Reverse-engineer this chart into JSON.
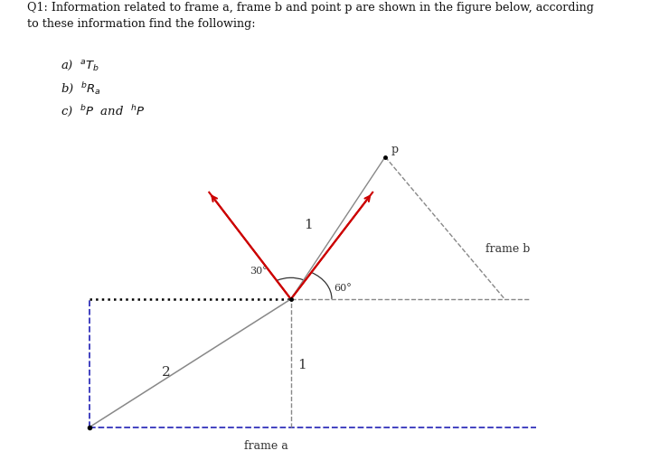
{
  "title_text": "Q1: Information related to frame a, frame b and point p are shown in the figure below, according\nto these information find the following:",
  "item_a": "a)  $^aT_b$",
  "item_b": "b)  $^bR_a$",
  "item_c": "c)  $^bP$  and  $^hP$",
  "frame_a_label": "frame a",
  "frame_b_label": "frame b",
  "p_label": "p",
  "angle_30": "30°",
  "angle_60": "60°",
  "label_1_side": "1",
  "label_2_diag": "2",
  "label_1_vert": "1",
  "bg_color": "#ffffff",
  "blue_dash": "#3333bb",
  "dotted_color": "#000000",
  "gray_color": "#888888",
  "red_color": "#cc0000",
  "dark_color": "#111111"
}
